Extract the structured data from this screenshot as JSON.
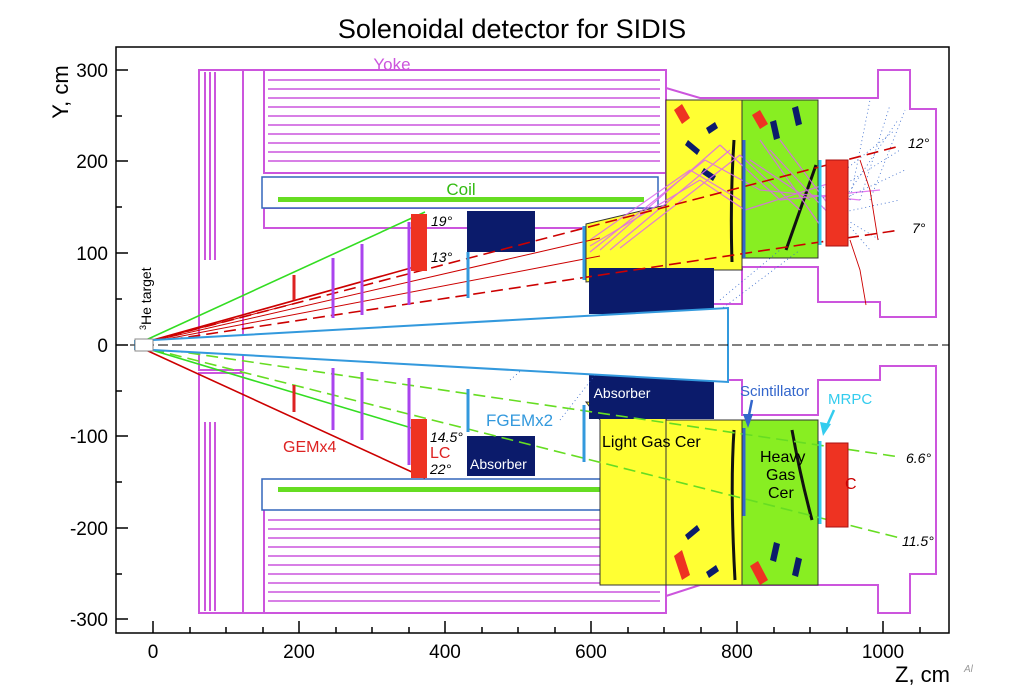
{
  "title": "Solenoidal detector for SIDIS",
  "axes": {
    "xlabel": "Z, cm",
    "ylabel": "Y, cm",
    "xlim": [
      -50,
      1100
    ],
    "ylim": [
      -330,
      330
    ],
    "x_ticks": [
      "0",
      "200",
      "400",
      "600",
      "800",
      "1000"
    ],
    "y_ticks": [
      "300",
      "200",
      "100",
      "0",
      "-100",
      "-200",
      "-300"
    ],
    "corner_mark": "Al"
  },
  "labels": {
    "yoke": "Yoke",
    "coil": "Coil",
    "target_sup": "3",
    "target": "He target",
    "gem": "GEMx4",
    "lc": "LC",
    "fgem": "FGEMx2",
    "absorber_mid": "Absorber",
    "absorber_low": "Absorber",
    "light_gas_cer": "Light Gas Cer",
    "heavy_gas_cer_1": "Heavy",
    "heavy_gas_cer_2": "Gas",
    "heavy_gas_cer_3": "Cer",
    "scintillator": "Scintillator",
    "mrpc": "MRPC",
    "ec": "C"
  },
  "angles": {
    "a19": "19°",
    "a13": "13°",
    "a12": "12°",
    "a7": "7°",
    "a14_5": "14.5°",
    "a22": "22°",
    "a6_6": "6.6°",
    "a11_5": "11.5°"
  },
  "colors": {
    "yoke": "#cc55dd",
    "coil": "#66dd22",
    "gem": "#dd2222",
    "fgem": "#3399dd",
    "absorber": "#0b1b6b",
    "light_gas": "#ffff33",
    "heavy_gas": "#88ee22",
    "ec": "#ee3322",
    "baffle": "#aa44ee",
    "mrpc": "#33ccee",
    "track_lc": "#cc0000",
    "track_le": "#33dd22"
  }
}
